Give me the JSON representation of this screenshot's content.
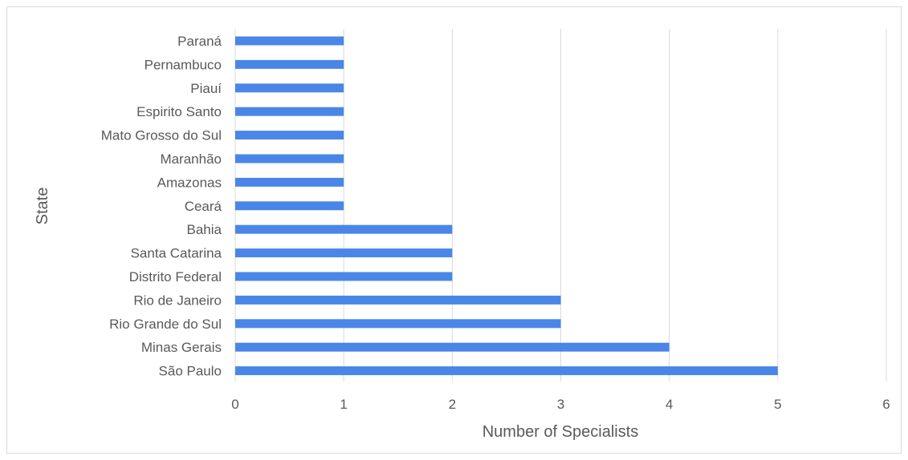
{
  "chart_data": {
    "type": "bar",
    "orientation": "horizontal",
    "categories": [
      "Paraná",
      "Pernambuco",
      "Piauí",
      "Espirito Santo",
      "Mato Grosso do Sul",
      "Maranhão",
      "Amazonas",
      "Ceará",
      "Bahia",
      "Santa Catarina",
      "Distrito Federal",
      "Rio de Janeiro",
      "Rio Grande do Sul",
      "Minas Gerais",
      "São Paulo"
    ],
    "values": [
      1,
      1,
      1,
      1,
      1,
      1,
      1,
      1,
      2,
      2,
      2,
      3,
      3,
      4,
      5
    ],
    "xlabel": "Number of Specialists",
    "ylabel": "State",
    "xlim": [
      0,
      6
    ],
    "xticks": [
      "0",
      "1",
      "2",
      "3",
      "4",
      "5",
      "6"
    ],
    "grid": "vertical",
    "legend": "none",
    "bar_color": "#4a86e8",
    "grid_color": "#d9d9d9"
  }
}
